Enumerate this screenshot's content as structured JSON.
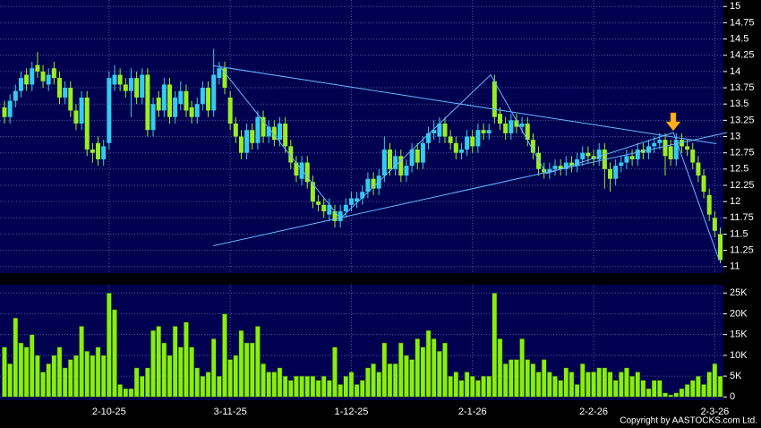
{
  "chart_data": {
    "type": "candlestick",
    "footer": "Copyright by AASTOCKS.com Ltd.",
    "categories": [
      null,
      null,
      null,
      null,
      null,
      null,
      null,
      null,
      null,
      null,
      null,
      null,
      null,
      null,
      null,
      null,
      null,
      null,
      null,
      "2-10-25",
      null,
      null,
      null,
      null,
      null,
      null,
      null,
      null,
      null,
      null,
      null,
      null,
      null,
      null,
      null,
      null,
      null,
      null,
      null,
      null,
      null,
      "3-11-25",
      null,
      null,
      null,
      null,
      null,
      null,
      null,
      null,
      null,
      null,
      null,
      null,
      null,
      null,
      null,
      null,
      null,
      null,
      null,
      null,
      null,
      "1-12-25",
      null,
      null,
      null,
      null,
      null,
      null,
      null,
      null,
      null,
      null,
      null,
      null,
      null,
      null,
      null,
      null,
      null,
      null,
      null,
      null,
      null,
      "2-1-26",
      null,
      null,
      null,
      null,
      null,
      null,
      null,
      null,
      null,
      null,
      null,
      null,
      null,
      null,
      null,
      null,
      null,
      null,
      null,
      null,
      null,
      "2-2-26",
      null,
      null,
      null,
      null,
      null,
      null,
      null,
      null,
      null,
      null,
      null,
      null,
      null,
      null,
      null,
      null,
      null,
      null,
      null,
      null,
      null,
      "2-3-26",
      null
    ],
    "open": [
      13.45,
      13.3,
      13.55,
      13.7,
      13.95,
      13.8,
      14.1,
      14.0,
      13.8,
      14.05,
      13.9,
      13.6,
      13.75,
      13.4,
      13.2,
      13.6,
      12.8,
      12.9,
      12.65,
      12.9,
      13.8,
      13.95,
      13.8,
      13.7,
      13.9,
      13.6,
      13.95,
      13.1,
      13.6,
      13.4,
      13.8,
      13.3,
      13.5,
      13.7,
      13.45,
      13.3,
      13.5,
      13.75,
      13.4,
      13.9,
      14.05,
      13.6,
      13.2,
      13.0,
      12.75,
      13.1,
      12.9,
      13.3,
      13.0,
      13.15,
      12.95,
      13.2,
      12.85,
      12.6,
      12.35,
      12.6,
      12.3,
      12.0,
      11.95,
      11.8,
      11.85,
      11.7,
      11.85,
      11.95,
      12.0,
      12.05,
      12.15,
      12.35,
      12.2,
      12.4,
      12.8,
      12.5,
      12.7,
      12.4,
      12.55,
      12.8,
      12.6,
      12.9,
      13.05,
      13.0,
      13.2,
      13.0,
      12.9,
      12.75,
      12.8,
      13.0,
      12.85,
      13.1,
      13.05,
      13.85,
      13.35,
      13.2,
      13.05,
      13.25,
      13.15,
      13.2,
      12.95,
      12.75,
      12.5,
      12.45,
      12.5,
      12.55,
      12.5,
      12.6,
      12.55,
      12.65,
      12.75,
      12.7,
      12.65,
      12.8,
      12.5,
      12.35,
      12.55,
      12.6,
      12.7,
      12.65,
      12.8,
      12.75,
      12.85,
      12.9,
      12.95,
      12.85,
      12.65,
      12.95,
      12.85,
      12.8,
      12.6,
      12.4,
      12.1,
      11.75,
      11.5
    ],
    "high": [
      13.55,
      13.65,
      13.8,
      14.0,
      14.05,
      14.15,
      14.3,
      14.1,
      14.05,
      14.15,
      14.0,
      13.85,
      13.85,
      13.5,
      13.7,
      13.7,
      12.9,
      13.0,
      12.95,
      14.0,
      14.1,
      14.05,
      13.9,
      14.05,
      14.0,
      14.05,
      14.05,
      13.6,
      13.7,
      13.9,
      13.9,
      13.7,
      13.85,
      13.8,
      13.55,
      13.6,
      13.85,
      13.85,
      14.35,
      14.15,
      14.15,
      13.7,
      13.3,
      13.1,
      13.2,
      13.2,
      13.4,
      13.4,
      13.25,
      13.25,
      13.3,
      13.3,
      12.95,
      12.7,
      12.7,
      12.7,
      12.4,
      12.1,
      12.05,
      12.05,
      11.95,
      11.95,
      12.05,
      12.15,
      12.15,
      12.25,
      12.45,
      12.45,
      12.5,
      13.0,
      12.9,
      12.8,
      12.8,
      12.65,
      12.9,
      12.9,
      13.0,
      13.15,
      13.25,
      13.3,
      13.3,
      13.1,
      13.0,
      12.9,
      13.1,
      13.1,
      13.2,
      13.2,
      13.2,
      13.95,
      13.45,
      13.3,
      13.35,
      13.35,
      13.3,
      13.3,
      13.05,
      12.85,
      12.6,
      12.6,
      12.65,
      12.65,
      12.7,
      12.7,
      12.75,
      12.85,
      12.85,
      12.8,
      12.9,
      12.9,
      12.6,
      12.65,
      12.7,
      12.8,
      12.8,
      12.9,
      12.9,
      12.95,
      13.0,
      13.05,
      13.05,
      12.95,
      13.05,
      13.05,
      12.95,
      12.9,
      12.7,
      12.5,
      12.2,
      11.85,
      11.6
    ],
    "low": [
      13.2,
      13.2,
      13.45,
      13.6,
      13.7,
      13.7,
      13.9,
      13.75,
      13.7,
      13.8,
      13.5,
      13.5,
      13.3,
      13.1,
      13.1,
      12.7,
      12.6,
      12.55,
      12.55,
      12.8,
      13.7,
      13.7,
      13.6,
      13.3,
      13.5,
      13.5,
      13.0,
      13.0,
      13.3,
      13.3,
      13.2,
      13.2,
      13.4,
      13.3,
      13.2,
      13.2,
      13.4,
      13.3,
      13.3,
      13.8,
      13.65,
      13.1,
      12.9,
      12.65,
      12.65,
      12.8,
      12.8,
      12.9,
      12.9,
      12.85,
      12.85,
      12.75,
      12.5,
      12.3,
      12.25,
      12.2,
      11.9,
      11.85,
      11.75,
      11.7,
      11.6,
      11.6,
      11.75,
      11.85,
      11.9,
      11.95,
      12.05,
      12.1,
      12.1,
      12.3,
      12.4,
      12.4,
      12.3,
      12.3,
      12.45,
      12.5,
      12.5,
      12.8,
      12.95,
      12.9,
      12.9,
      12.8,
      12.65,
      12.65,
      12.7,
      12.75,
      12.75,
      12.95,
      12.95,
      13.2,
      13.1,
      12.95,
      12.95,
      13.05,
      13.05,
      12.85,
      12.65,
      12.4,
      12.35,
      12.35,
      12.4,
      12.4,
      12.4,
      12.45,
      12.45,
      12.55,
      12.6,
      12.55,
      12.55,
      12.2,
      12.15,
      12.25,
      12.45,
      12.5,
      12.55,
      12.55,
      12.65,
      12.65,
      12.75,
      12.8,
      12.4,
      12.55,
      12.55,
      12.75,
      12.7,
      12.5,
      12.3,
      12.05,
      11.7,
      11.45,
      11.05
    ],
    "close": [
      13.3,
      13.55,
      13.7,
      13.9,
      13.8,
      14.05,
      14.0,
      13.85,
      13.95,
      13.9,
      13.6,
      13.75,
      13.4,
      13.2,
      13.6,
      12.8,
      12.75,
      12.65,
      12.85,
      13.9,
      13.95,
      13.8,
      13.7,
      13.9,
      13.6,
      13.95,
      13.1,
      13.5,
      13.4,
      13.8,
      13.3,
      13.6,
      13.7,
      13.4,
      13.3,
      13.5,
      13.75,
      13.4,
      13.95,
      14.05,
      13.75,
      13.2,
      13.0,
      12.75,
      13.1,
      12.9,
      13.3,
      13.0,
      13.15,
      12.95,
      13.2,
      12.85,
      12.6,
      12.4,
      12.6,
      12.3,
      12.0,
      11.95,
      11.85,
      11.95,
      11.7,
      11.85,
      11.95,
      12.05,
      12.05,
      12.15,
      12.35,
      12.2,
      12.4,
      12.8,
      12.5,
      12.7,
      12.4,
      12.55,
      12.8,
      12.6,
      12.9,
      13.05,
      13.1,
      13.2,
      13.0,
      12.9,
      12.75,
      12.8,
      13.0,
      12.85,
      13.1,
      13.05,
      13.1,
      13.3,
      13.2,
      13.05,
      13.25,
      13.15,
      13.2,
      12.95,
      12.75,
      12.5,
      12.45,
      12.5,
      12.55,
      12.5,
      12.6,
      12.55,
      12.65,
      12.75,
      12.7,
      12.65,
      12.8,
      12.5,
      12.35,
      12.55,
      12.6,
      12.7,
      12.65,
      12.8,
      12.75,
      12.85,
      12.9,
      12.95,
      12.7,
      12.65,
      12.95,
      12.85,
      12.8,
      12.6,
      12.4,
      12.15,
      11.8,
      11.55,
      11.1
    ],
    "volume": [
      12000,
      8000,
      19000,
      13000,
      12000,
      15000,
      10000,
      6000,
      8000,
      10000,
      12000,
      7000,
      9000,
      10000,
      17000,
      11000,
      10000,
      12000,
      10000,
      25000,
      21000,
      3000,
      2000,
      2000,
      7000,
      5000,
      7000,
      16000,
      17000,
      13000,
      10000,
      17000,
      12000,
      18000,
      12000,
      7000,
      5000,
      6000,
      14000,
      5000,
      20000,
      9000,
      10000,
      16000,
      13000,
      13000,
      17000,
      8000,
      6000,
      6000,
      7000,
      5000,
      4000,
      5000,
      5000,
      5000,
      5000,
      4000,
      5000,
      4000,
      12000,
      3000,
      5000,
      6000,
      3000,
      4000,
      7000,
      8000,
      6000,
      13000,
      8000,
      8000,
      13000,
      10000,
      9000,
      14000,
      12000,
      16000,
      14000,
      11000,
      13000,
      5000,
      6000,
      4000,
      6000,
      5000,
      4000,
      5000,
      5000,
      25000,
      14000,
      8000,
      9000,
      9000,
      14000,
      9000,
      8000,
      6000,
      9000,
      6000,
      5000,
      4000,
      7000,
      6000,
      3000,
      8000,
      6000,
      6000,
      7000,
      7000,
      6000,
      4000,
      6000,
      7000,
      5000,
      6000,
      4000,
      2000,
      4000,
      4000,
      1000,
      500,
      1000,
      2000,
      3000,
      4000,
      5000,
      3000,
      6000,
      8000,
      5000
    ],
    "ylim": [
      10.9,
      15.1
    ],
    "yticks": [
      11,
      11.25,
      11.5,
      11.75,
      12,
      12.25,
      12.5,
      12.75,
      13,
      13.25,
      13.5,
      13.75,
      14,
      14.25,
      14.5,
      14.75,
      15
    ],
    "volume_ylim": [
      -800,
      27000
    ],
    "volume_yticks": [
      0,
      {
        "value": 5000,
        "label": "5K"
      },
      {
        "value": 10000,
        "label": "10K"
      },
      {
        "value": 15000,
        "label": "15K"
      },
      {
        "value": 20000,
        "label": "20K"
      },
      {
        "value": 25000,
        "label": "25K"
      }
    ],
    "lines": [
      {
        "x": [
          37.9,
          129.3
        ],
        "y": [
          14.09,
          12.89
        ]
      },
      {
        "x": [
          37.9,
          131.2
        ],
        "y": [
          11.32,
          13.06
        ]
      },
      {
        "x": [
          39,
          61,
          88.3,
          98.4,
          121.5,
          129.8
        ],
        "y": [
          14.09,
          11.74,
          13.95,
          12.43,
          13.06,
          11.1
        ]
      }
    ],
    "up_color": "#33ccee",
    "down_color": "#99ee22",
    "volume_color": "#88ee11",
    "line_color": "#66b8ff",
    "grid": true
  }
}
